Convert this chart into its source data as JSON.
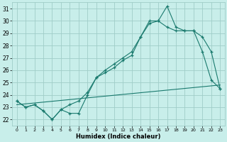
{
  "xlabel": "Humidex (Indice chaleur)",
  "xlim": [
    -0.5,
    23.5
  ],
  "ylim": [
    21.5,
    31.5
  ],
  "yticks": [
    22,
    23,
    24,
    25,
    26,
    27,
    28,
    29,
    30,
    31
  ],
  "xticks": [
    0,
    1,
    2,
    3,
    4,
    5,
    6,
    7,
    8,
    9,
    10,
    11,
    12,
    13,
    14,
    15,
    16,
    17,
    18,
    19,
    20,
    21,
    22,
    23
  ],
  "bg_color": "#c8eeea",
  "grid_color": "#a0cdc8",
  "line_color": "#1a7a6e",
  "line1_x": [
    0,
    1,
    2,
    3,
    4,
    5,
    6,
    7,
    8,
    9,
    10,
    11,
    12,
    13,
    14,
    15,
    16,
    17,
    18,
    19,
    20,
    21,
    22,
    23
  ],
  "line1_y": [
    23.5,
    23.0,
    23.2,
    22.7,
    22.0,
    22.8,
    22.5,
    22.5,
    24.0,
    25.4,
    25.8,
    26.2,
    26.8,
    27.2,
    28.7,
    30.0,
    30.0,
    31.2,
    29.5,
    29.2,
    29.2,
    27.5,
    25.2,
    24.5
  ],
  "line2_x": [
    0,
    1,
    2,
    3,
    4,
    5,
    6,
    7,
    8,
    9,
    10,
    11,
    12,
    13,
    14,
    15,
    16,
    17,
    18,
    19,
    20,
    21,
    22,
    23
  ],
  "line2_y": [
    23.5,
    23.0,
    23.2,
    22.7,
    22.0,
    22.8,
    23.2,
    23.5,
    24.2,
    25.4,
    26.0,
    26.5,
    27.0,
    27.5,
    28.7,
    29.8,
    30.0,
    29.5,
    29.2,
    29.2,
    29.2,
    28.7,
    27.5,
    24.5
  ],
  "line3_x": [
    0,
    23
  ],
  "line3_y": [
    23.2,
    24.8
  ]
}
